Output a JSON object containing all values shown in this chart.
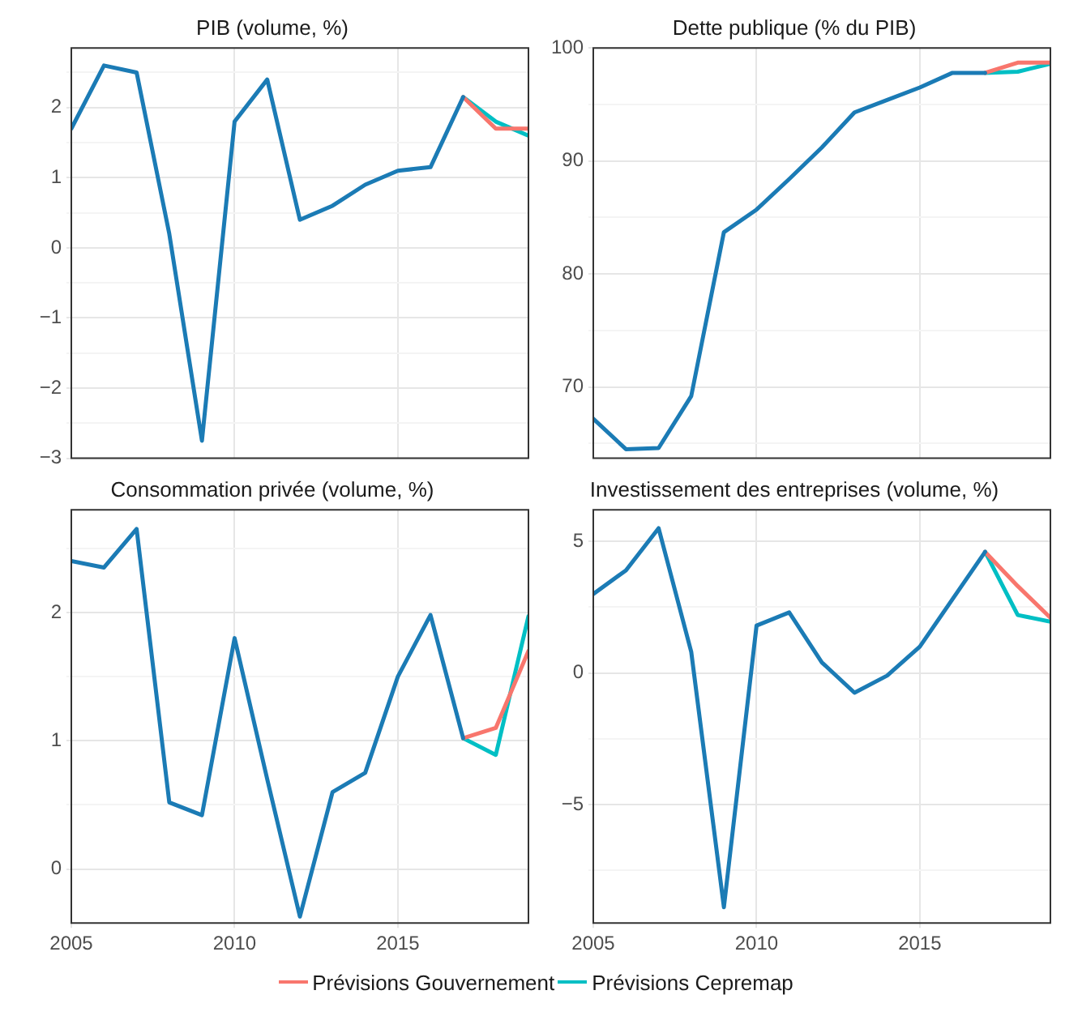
{
  "chart_data": [
    {
      "type": "line",
      "title": "PIB (volume, %)",
      "x": [
        2005,
        2006,
        2007,
        2008,
        2009,
        2010,
        2011,
        2012,
        2013,
        2014,
        2015,
        2016,
        2017
      ],
      "xlim": [
        2005,
        2019
      ],
      "xticks": [
        2005,
        2010,
        2015
      ],
      "ylim": [
        -3,
        2.85
      ],
      "yticks": [
        -3,
        {
          "value": -2.5,
          "label": null
        },
        -2,
        {
          "value": -1.5,
          "label": null
        },
        -1,
        {
          "value": -0.5,
          "label": null
        },
        0,
        {
          "value": 0.5,
          "label": null
        },
        1,
        {
          "value": 1.5,
          "label": null
        },
        2,
        {
          "value": 2.5,
          "label": null
        }
      ],
      "tick_labels": "y",
      "grid": true,
      "series": [
        {
          "color": "#1b7bb5",
          "values": [
            1.7,
            2.6,
            2.5,
            0.2,
            -2.75,
            1.8,
            2.4,
            0.4,
            0.6,
            0.9,
            1.1,
            1.15,
            2.15
          ]
        },
        {
          "color": "#f8766d",
          "x": [
            2017,
            2018,
            2019
          ],
          "values": [
            2.15,
            1.7,
            1.7
          ]
        },
        {
          "color": "#00bfc4",
          "x": [
            2017,
            2018,
            2019
          ],
          "values": [
            2.15,
            1.8,
            1.6
          ]
        }
      ]
    },
    {
      "type": "line",
      "title": "Dette publique (% du PIB)",
      "x": [
        2005,
        2006,
        2007,
        2008,
        2009,
        2010,
        2011,
        2012,
        2013,
        2014,
        2015,
        2016,
        2017
      ],
      "xlim": [
        2005,
        2019
      ],
      "xticks": [
        2005,
        2010,
        2015
      ],
      "ylim": [
        63.7,
        100
      ],
      "yticks": [
        {
          "value": 65,
          "label": null
        },
        70,
        {
          "value": 75,
          "label": null
        },
        80,
        {
          "value": 85,
          "label": null
        },
        90,
        {
          "value": 95,
          "label": null
        },
        100
      ],
      "tick_labels": "y",
      "grid": true,
      "series": [
        {
          "color": "#1b7bb5",
          "values": [
            67.2,
            64.5,
            64.6,
            69.2,
            83.7,
            85.7,
            88.4,
            91.2,
            94.3,
            95.4,
            96.5,
            97.8,
            97.8
          ]
        },
        {
          "color": "#f8766d",
          "x": [
            2017,
            2018,
            2019
          ],
          "values": [
            97.8,
            98.7,
            98.7
          ]
        },
        {
          "color": "#00bfc4",
          "x": [
            2017,
            2018,
            2019
          ],
          "values": [
            97.8,
            97.9,
            98.6
          ]
        }
      ]
    },
    {
      "type": "line",
      "title": "Consommation privée (volume, %)",
      "x": [
        2005,
        2006,
        2007,
        2008,
        2009,
        2010,
        2011,
        2012,
        2013,
        2014,
        2015,
        2016,
        2017
      ],
      "xlim": [
        2005,
        2019
      ],
      "xticks": [
        2005,
        2010,
        2015
      ],
      "ylim": [
        -0.42,
        2.8
      ],
      "yticks": [
        0,
        {
          "value": 0.5,
          "label": null
        },
        1,
        {
          "value": 1.5,
          "label": null
        },
        2,
        {
          "value": 2.5,
          "label": null
        }
      ],
      "grid": true,
      "series": [
        {
          "color": "#1b7bb5",
          "values": [
            2.4,
            2.35,
            2.65,
            0.52,
            0.42,
            1.8,
            0.7,
            -0.37,
            0.6,
            0.75,
            1.5,
            1.98,
            1.02
          ]
        },
        {
          "color": "#f8766d",
          "x": [
            2017,
            2018,
            2019
          ],
          "values": [
            1.02,
            1.1,
            1.7
          ]
        },
        {
          "color": "#00bfc4",
          "x": [
            2017,
            2018,
            2019
          ],
          "values": [
            1.02,
            0.89,
            1.97
          ]
        }
      ]
    },
    {
      "type": "line",
      "title": "Investissement des entreprises (volume, %)",
      "x": [
        2005,
        2006,
        2007,
        2008,
        2009,
        2010,
        2011,
        2012,
        2013,
        2014,
        2015,
        2016,
        2017
      ],
      "xlim": [
        2005,
        2019
      ],
      "xticks": [
        2005,
        2010,
        2015
      ],
      "ylim": [
        -9.5,
        6.2
      ],
      "yticks": [
        {
          "value": -7.5,
          "label": null
        },
        -5,
        {
          "value": -2.5,
          "label": null
        },
        0,
        {
          "value": 2.5,
          "label": null
        },
        5
      ],
      "grid": true,
      "legend": "bottom",
      "series": [
        {
          "color": "#1b7bb5",
          "values": [
            3.0,
            3.9,
            5.5,
            0.8,
            -8.9,
            1.8,
            2.3,
            0.4,
            -0.75,
            -0.1,
            1.0,
            2.8,
            4.6
          ]
        },
        {
          "name": "Prévisions Gouvernement",
          "color": "#f8766d",
          "x": [
            2017,
            2018,
            2019
          ],
          "values": [
            4.6,
            3.3,
            2.1
          ]
        },
        {
          "name": "Prévisions Cepremap",
          "color": "#00bfc4",
          "x": [
            2017,
            2018,
            2019
          ],
          "values": [
            4.6,
            2.2,
            1.95
          ]
        }
      ]
    }
  ]
}
